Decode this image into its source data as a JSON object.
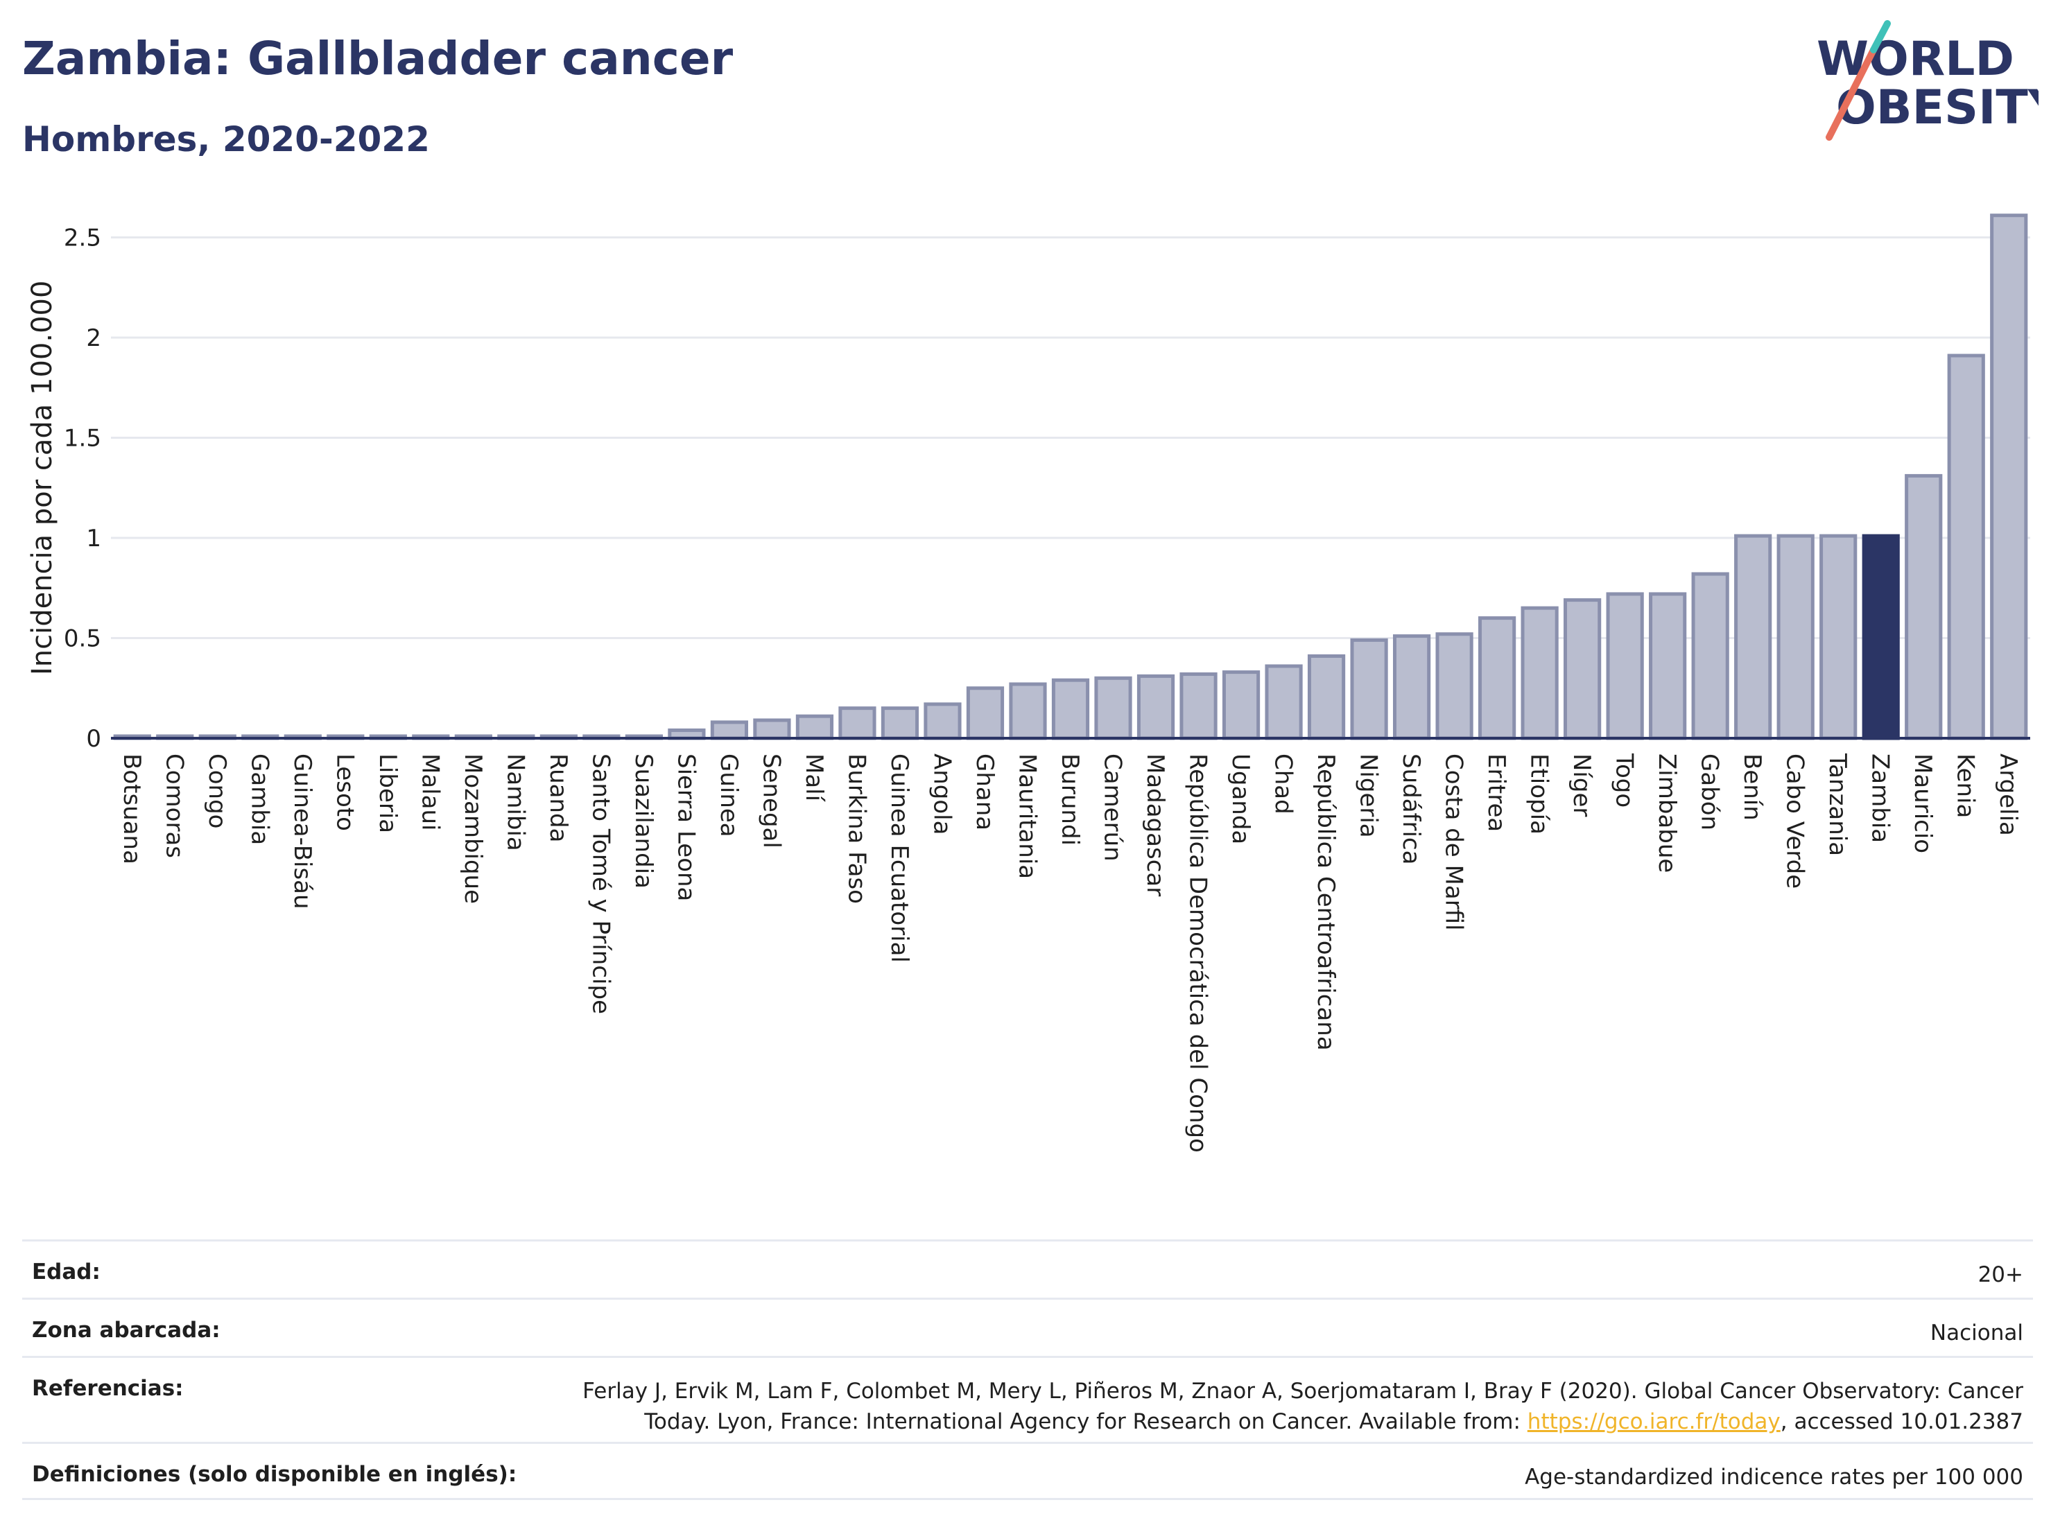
{
  "header": {
    "title": "Zambia: Gallbladder cancer",
    "subtitle": "Hombres, 2020-2022",
    "logo_line1": "WORLD",
    "logo_line2": "OBESITY"
  },
  "chart_data": {
    "type": "bar",
    "ylabel": "Incidencia por cada 100.000",
    "ylim": [
      0,
      2.6
    ],
    "yticks": [
      0,
      0.5,
      1,
      1.5,
      2,
      2.5
    ],
    "ytick_labels": [
      "0",
      "0.5",
      "1",
      "1.5",
      "2",
      "2.5"
    ],
    "grid": true,
    "highlight": "Zambia",
    "colors": {
      "bar_fill": "#b9bdcf",
      "bar_stroke": "#8a90ad",
      "highlight_fill": "#2b3565",
      "grid": "#e6e8ee",
      "axis": "#2b3565"
    },
    "categories": [
      "Botsuana",
      "Comoras",
      "Congo",
      "Gambia",
      "Guinea-Bisáu",
      "Lesoto",
      "Liberia",
      "Malaui",
      "Mozambique",
      "Namibia",
      "Ruanda",
      "Santo Tomé y Príncipe",
      "Suazilandia",
      "Sierra Leona",
      "Guinea",
      "Senegal",
      "Malí",
      "Burkina Faso",
      "Guinea Ecuatorial",
      "Angola",
      "Ghana",
      "Mauritania",
      "Burundi",
      "Camerún",
      "Madagascar",
      "República Democrática del Congo",
      "Uganda",
      "Chad",
      "República Centroafricana",
      "Nigeria",
      "Sudáfrica",
      "Costa de Marfil",
      "Eritrea",
      "Etiopía",
      "Níger",
      "Togo",
      "Zimbabue",
      "Gabón",
      "Benín",
      "Cabo Verde",
      "Tanzania",
      "Zambia",
      "Mauricio",
      "Kenia",
      "Argelia"
    ],
    "values": [
      0.01,
      0.01,
      0.01,
      0.01,
      0.01,
      0.01,
      0.01,
      0.01,
      0.01,
      0.01,
      0.01,
      0.01,
      0.01,
      0.04,
      0.08,
      0.09,
      0.11,
      0.15,
      0.15,
      0.17,
      0.25,
      0.27,
      0.29,
      0.3,
      0.31,
      0.32,
      0.33,
      0.36,
      0.41,
      0.49,
      0.51,
      0.52,
      0.6,
      0.65,
      0.69,
      0.72,
      0.72,
      0.82,
      1.01,
      1.01,
      1.01,
      1.01,
      1.31,
      1.91,
      2.61
    ]
  },
  "info": {
    "age_label": "Edad:",
    "age_value": "20+",
    "area_label": "Zona abarcada:",
    "area_value": "Nacional",
    "refs_label": "Referencias:",
    "refs_line1": "Ferlay J, Ervik M, Lam F, Colombet M, Mery L, Piñeros M, Znaor A, Soerjomataram I, Bray F (2020). Global Cancer Observatory: Cancer",
    "refs_line2_prefix": "Today. Lyon, France: International Agency for Research on Cancer. Available from: ",
    "refs_link": "https://gco.iarc.fr/today",
    "refs_line2_suffix": ", accessed 10.01.2387",
    "defs_label": "Definiciones (solo disponible en inglés):",
    "defs_value": "Age-standardized indicence rates per 100 000"
  }
}
